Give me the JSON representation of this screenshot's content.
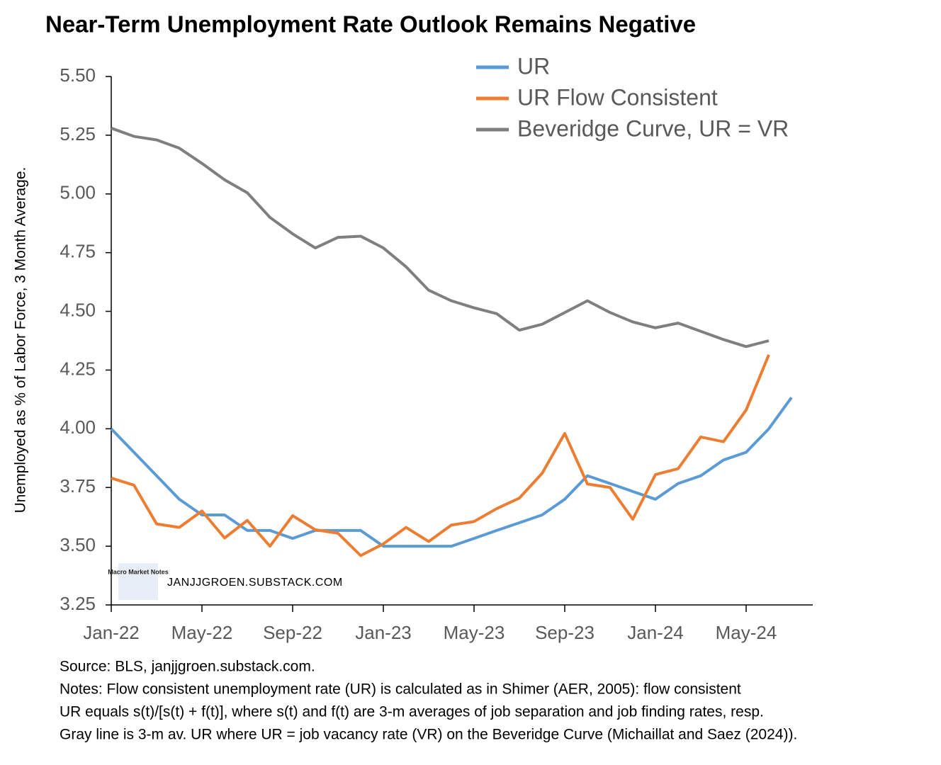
{
  "chart_data": {
    "type": "line",
    "title": "Near-Term Unemployment Rate Outlook Remains Negative",
    "y_label": "Unemployed as % of Labor Force, 3 Month Average.",
    "categories": [
      "Jan-22",
      null,
      null,
      null,
      "May-22",
      null,
      null,
      null,
      "Sep-22",
      null,
      null,
      null,
      "Jan-23",
      null,
      null,
      null,
      "May-23",
      null,
      null,
      null,
      "Sep-23",
      null,
      null,
      null,
      "Jan-24",
      null,
      null,
      null,
      "May-24",
      null,
      null,
      null
    ],
    "series": [
      {
        "name": "UR",
        "color": "#5b9bd5",
        "values": [
          4.0,
          3.9,
          3.8,
          3.7,
          3.633,
          3.633,
          3.567,
          3.567,
          3.533,
          3.567,
          3.567,
          3.567,
          3.5,
          3.5,
          3.5,
          3.5,
          3.533,
          3.567,
          3.6,
          3.633,
          3.7,
          3.8,
          3.767,
          3.733,
          3.7,
          3.767,
          3.8,
          3.867,
          3.9,
          4.0,
          4.133,
          null
        ]
      },
      {
        "name": "UR Flow Consistent",
        "color": "#ed7d31",
        "values": [
          3.79,
          3.76,
          3.595,
          3.58,
          3.65,
          3.535,
          3.61,
          3.5,
          3.63,
          3.57,
          3.555,
          3.46,
          3.51,
          3.58,
          3.52,
          3.59,
          3.605,
          3.66,
          3.705,
          3.81,
          3.98,
          3.765,
          3.75,
          3.615,
          3.805,
          3.83,
          3.965,
          3.945,
          4.08,
          4.315,
          null,
          null
        ]
      },
      {
        "name": "Beveridge Curve, UR = VR",
        "color": "#7f7f7f",
        "values": [
          5.28,
          5.245,
          5.23,
          5.195,
          5.13,
          5.06,
          5.005,
          4.9,
          4.83,
          4.77,
          4.815,
          4.82,
          4.77,
          4.69,
          4.59,
          4.545,
          4.515,
          4.49,
          4.42,
          4.445,
          4.495,
          4.545,
          4.495,
          4.455,
          4.43,
          4.45,
          4.415,
          4.38,
          4.35,
          4.375,
          null,
          null
        ]
      }
    ],
    "ylim": [
      3.25,
      5.5
    ],
    "yticks": [
      3.25,
      {
        "value": 3.5,
        "label": "3.50"
      },
      3.75,
      {
        "value": 4.0,
        "label": "4.00"
      },
      4.25,
      {
        "value": 4.5,
        "label": "4.50"
      },
      4.75,
      {
        "value": 5.0,
        "label": "5.00"
      },
      5.25,
      {
        "value": 5.5,
        "label": "5.50"
      }
    ],
    "grid": false,
    "legend": "top",
    "watermark": "JANJJGROEN.SUBSTACK.COM",
    "logo_text": "Macro Market Notes",
    "notes": [
      "Source: BLS, janjjgroen.substack.com.",
      "Notes: Flow consistent unemployment rate (UR) is calculated as in Shimer (AER, 2005):  flow consistent",
      "UR equals s(t)/[s(t) + f(t)], where s(t) and f(t) are 3-m averages of job separation and job finding rates, resp.",
      "Gray line is 3-m av. UR where UR = job vacancy rate (VR) on the Beveridge Curve (Michaillat and Saez (2024))."
    ]
  }
}
